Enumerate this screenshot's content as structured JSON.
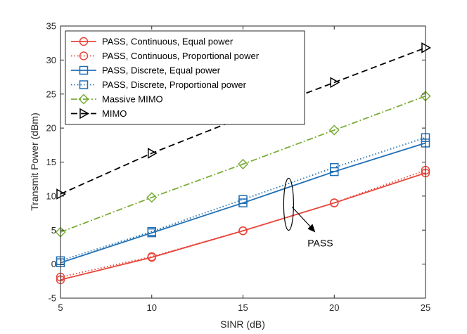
{
  "chart_data": {
    "type": "line",
    "title": "",
    "xlabel": "SINR (dB)",
    "ylabel": "Transmit Power (dBm)",
    "x": [
      5,
      10,
      15,
      20,
      25
    ],
    "xlim": [
      5,
      25
    ],
    "ylim": [
      -5,
      35
    ],
    "xticks": [
      5,
      10,
      15,
      20,
      25
    ],
    "yticks": [
      -5,
      0,
      5,
      10,
      15,
      20,
      25,
      30,
      35
    ],
    "grid": false,
    "legend_position": "top-left",
    "series": [
      {
        "name": "PASS, Continuous, Equal power",
        "values": [
          -2.3,
          1.0,
          4.9,
          9.0,
          13.4
        ],
        "color": "#e8463a",
        "line_style": "solid",
        "marker": "circle"
      },
      {
        "name": "PASS, Continuous, Proportional power",
        "values": [
          -1.9,
          1.1,
          4.9,
          9.0,
          13.8
        ],
        "color": "#e8463a",
        "line_style": "dotted",
        "marker": "circle"
      },
      {
        "name": "PASS, Discrete, Equal power",
        "values": [
          0.2,
          4.6,
          9.0,
          13.6,
          17.8
        ],
        "color": "#1f6fb4",
        "line_style": "solid",
        "marker": "square"
      },
      {
        "name": "PASS, Discrete, Proportional power",
        "values": [
          0.5,
          4.8,
          9.5,
          14.2,
          18.6
        ],
        "color": "#1f6fb4",
        "line_style": "dotted",
        "marker": "square"
      },
      {
        "name": "Massive MIMO",
        "values": [
          4.7,
          9.8,
          14.7,
          19.7,
          24.7
        ],
        "color": "#7aac38",
        "line_style": "dashdot",
        "marker": "diamond"
      },
      {
        "name": "MIMO",
        "values": [
          10.3,
          16.3,
          21.6,
          26.7,
          31.8
        ],
        "color": "#000000",
        "line_style": "dashed",
        "marker": "triangle-right"
      }
    ],
    "annotations": [
      {
        "text": "PASS",
        "type": "ellipse-with-arrow",
        "x": 17.5,
        "y": 8.8
      }
    ]
  }
}
